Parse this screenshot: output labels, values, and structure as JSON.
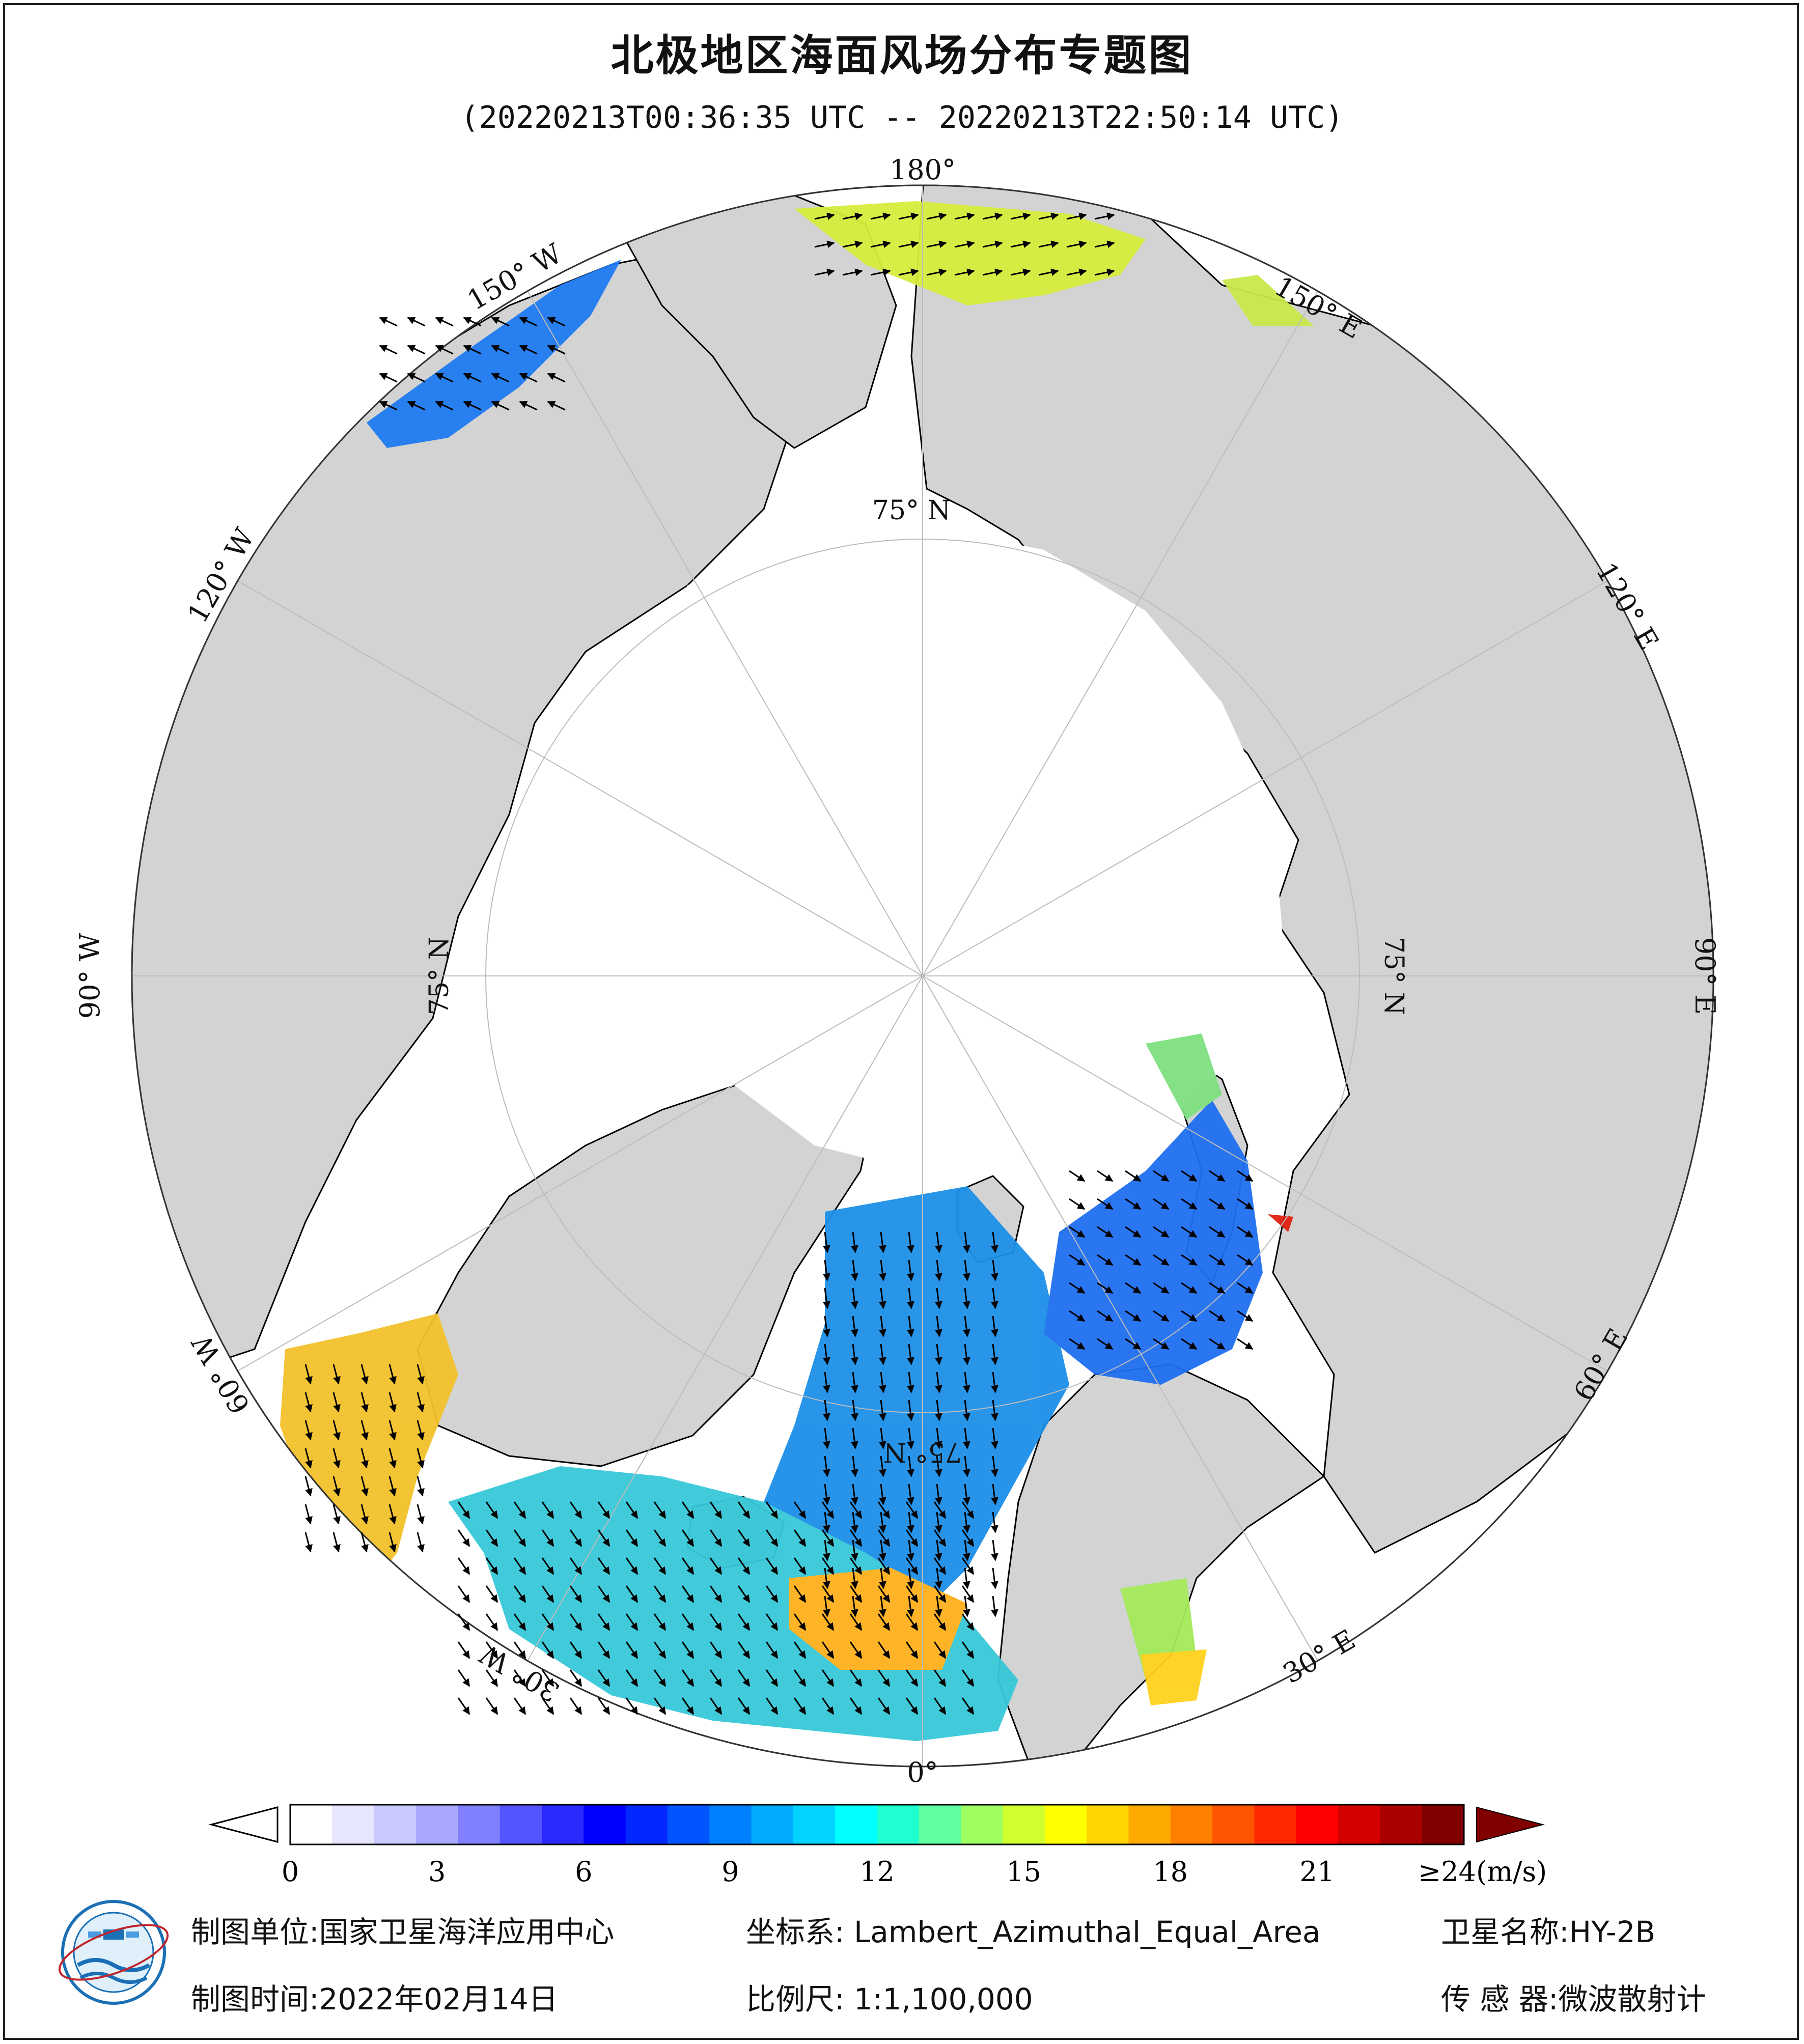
{
  "header": {
    "title": "北极地区海面风场分布专题图",
    "subtitle": "(20220213T00:36:35 UTC -- 20220213T22:50:14 UTC)"
  },
  "map": {
    "projection": "Lambert_Azimuthal_Equal_Area",
    "center": "North Pole",
    "lon_labels": [
      "180°",
      "150° E",
      "120° E",
      "90° E",
      "60° E",
      "30° E",
      "0°",
      "30° W",
      "60° W",
      "90° W",
      "120° W",
      "150° W"
    ],
    "lat_labels": [
      "75° N",
      "75° N",
      "75° N",
      "75° N"
    ],
    "colors": {
      "land": "#d3d3d3",
      "ocean_ice": "#ffffff",
      "graticule": "#bcbcbc",
      "coastline": "#000000",
      "wind_arrow": "#000000"
    }
  },
  "colorbar": {
    "ticks": [
      "0",
      "3",
      "6",
      "9",
      "12",
      "15",
      "18",
      "21"
    ],
    "max_label": "≥24(m/s)",
    "min_value": 0,
    "max_value": 24,
    "colors": [
      "#ffffff",
      "#e6e6ff",
      "#c9c9ff",
      "#a8a8ff",
      "#8080ff",
      "#5555ff",
      "#2a2aff",
      "#0000ff",
      "#0028ff",
      "#0055ff",
      "#0080ff",
      "#00aaff",
      "#00d4ff",
      "#00ffff",
      "#20ffd0",
      "#60ffa0",
      "#a0ff60",
      "#d0ff30",
      "#ffff00",
      "#ffd400",
      "#ffaa00",
      "#ff7f00",
      "#ff5500",
      "#ff2a00",
      "#ff0000",
      "#d40000",
      "#aa0000",
      "#800000"
    ],
    "over_color": "#800000",
    "under_color": "#ffffff"
  },
  "footer": {
    "unit_label": "制图单位:国家卫星海洋应用中心",
    "coord_label": "坐标系: Lambert_Azimuthal_Equal_Area",
    "satellite_label": "卫星名称:HY-2B",
    "date_label": "制图时间:2022年02月14日",
    "scale_label": "比例尺: 1:1,100,000",
    "sensor_label": "传 感 器:微波散射计"
  }
}
